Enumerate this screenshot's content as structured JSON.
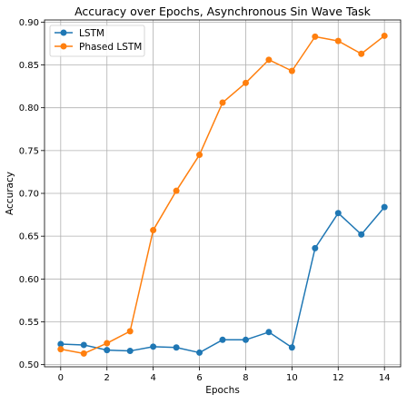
{
  "chart_data": {
    "type": "line",
    "title": "Accuracy over Epochs, Asynchronous Sin Wave Task",
    "xlabel": "Epochs",
    "ylabel": "Accuracy",
    "x": [
      0,
      1,
      2,
      3,
      4,
      5,
      6,
      7,
      8,
      9,
      10,
      11,
      12,
      13,
      14
    ],
    "xlim": [
      -0.7,
      14.7
    ],
    "ylim": [
      0.4975,
      0.9025
    ],
    "xticks": [
      0,
      2,
      4,
      6,
      8,
      10,
      12,
      14
    ],
    "yticks": [
      0.5,
      0.55,
      0.6,
      0.65,
      0.7,
      0.75,
      0.8,
      0.85,
      0.9
    ],
    "xtick_labels": [
      "0",
      "2",
      "4",
      "6",
      "8",
      "10",
      "12",
      "14"
    ],
    "ytick_labels": [
      "0.50",
      "0.55",
      "0.60",
      "0.65",
      "0.70",
      "0.75",
      "0.80",
      "0.85",
      "0.90"
    ],
    "grid": true,
    "legend": "top-left",
    "series": [
      {
        "name": "LSTM",
        "color": "#1f77b4",
        "marker": "circle",
        "values": [
          0.524,
          0.523,
          0.517,
          0.516,
          0.521,
          0.52,
          0.514,
          0.529,
          0.529,
          0.538,
          0.52,
          0.636,
          0.677,
          0.652,
          0.684
        ]
      },
      {
        "name": "Phased LSTM",
        "color": "#ff7f0e",
        "marker": "circle",
        "values": [
          0.518,
          0.513,
          0.525,
          0.539,
          0.657,
          0.703,
          0.745,
          0.806,
          0.829,
          0.856,
          0.843,
          0.883,
          0.878,
          0.863,
          0.884
        ]
      }
    ]
  }
}
